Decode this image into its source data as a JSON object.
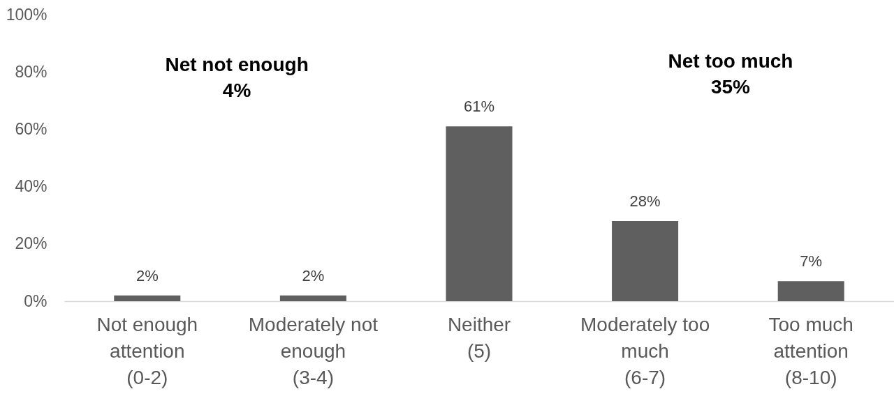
{
  "chart_data": {
    "type": "bar",
    "categories": [
      "Not enough\nattention\n(0-2)",
      "Moderately not\nenough\n(3-4)",
      "Neither\n(5)",
      "Moderately too\nmuch\n(6-7)",
      "Too much\nattention\n(8-10)"
    ],
    "values": [
      2,
      2,
      61,
      28,
      7
    ],
    "value_labels": [
      "2%",
      "2%",
      "61%",
      "28%",
      "7%"
    ],
    "color": "#5f5f5f",
    "ylim": [
      0,
      100
    ],
    "yticks": [
      {
        "value": 0,
        "label": "0%"
      },
      {
        "value": 20,
        "label": "20%"
      },
      {
        "value": 40,
        "label": "40%"
      },
      {
        "value": 60,
        "label": "60%"
      },
      {
        "value": 80,
        "label": "80%"
      },
      {
        "value": 100,
        "label": "100%"
      }
    ],
    "annotations": [
      "Net not enough\n4%",
      "Net too much\n35%"
    ]
  }
}
